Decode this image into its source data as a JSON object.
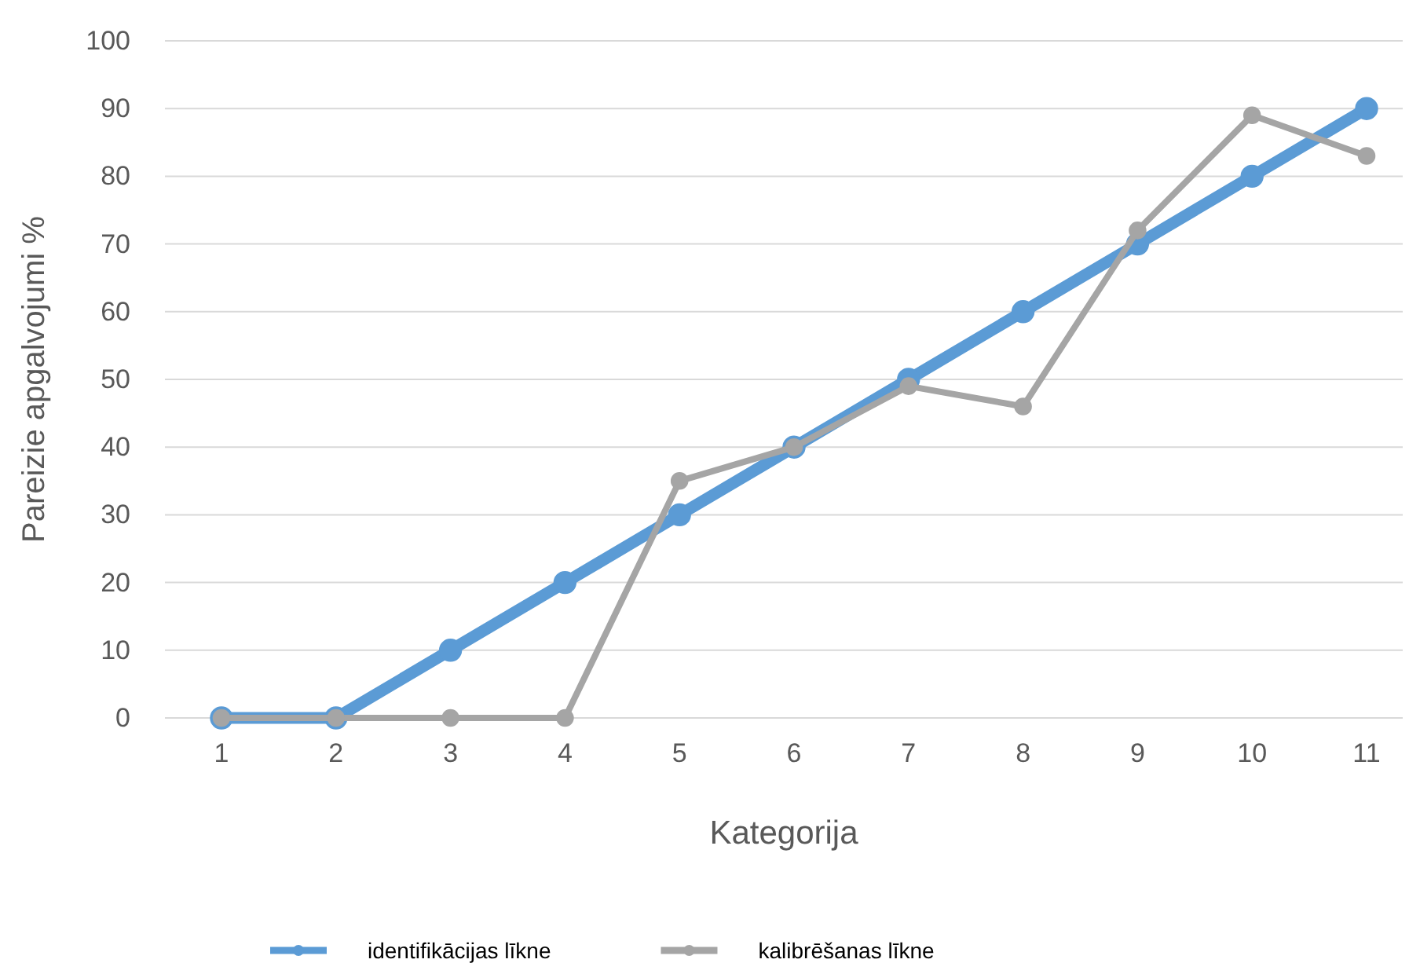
{
  "chart_data": {
    "type": "line",
    "xlabel": "Kategorija",
    "ylabel": "Pareizie apgalvojumi %",
    "categories": [
      "1",
      "2",
      "3",
      "4",
      "5",
      "6",
      "7",
      "8",
      "9",
      "10",
      "11"
    ],
    "series": [
      {
        "name": "identifikācijas līkne",
        "color": "#5b9bd5",
        "values": [
          0,
          0,
          10,
          20,
          30,
          40,
          50,
          60,
          70,
          80,
          90
        ]
      },
      {
        "name": "kalibrēšanas līkne",
        "color": "#a5a5a5",
        "values": [
          0,
          0,
          0,
          0,
          35,
          40,
          49,
          46,
          72,
          89,
          83
        ]
      }
    ],
    "ylim": [
      0,
      100
    ],
    "yticks": [
      0,
      10,
      20,
      30,
      40,
      50,
      60,
      70,
      80,
      90,
      100
    ],
    "grid": "y",
    "legend": "bottom",
    "marker": "circle",
    "line_style": "solid"
  }
}
